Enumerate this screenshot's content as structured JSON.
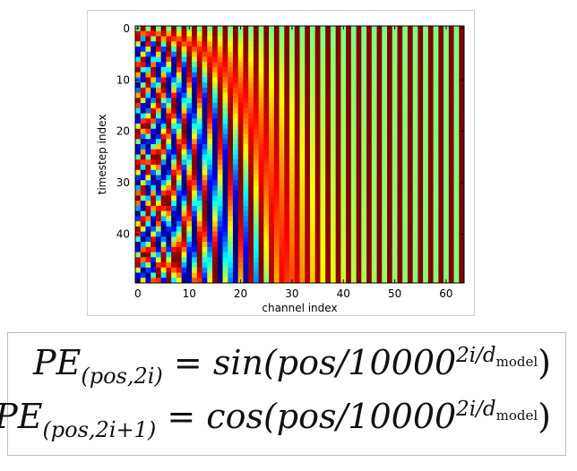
{
  "chart_data": {
    "type": "heatmap",
    "title": "",
    "xlabel": "channel index",
    "ylabel": "timestep index",
    "n_channels": 64,
    "n_timesteps": 50,
    "d_model": 64,
    "xlim": [
      0,
      64
    ],
    "ylim": [
      50,
      0
    ],
    "x_ticks": [
      "0",
      "10",
      "20",
      "30",
      "40",
      "50",
      "60"
    ],
    "y_ticks": [
      "0",
      "10",
      "20",
      "30",
      "40"
    ],
    "colormap": "jet",
    "value_range": [
      -1,
      1
    ],
    "grid": false
  },
  "formulas": [
    {
      "lhs_symbol": "PE",
      "lhs_subscript": "(pos,2i)",
      "equals": "=",
      "func": "sin",
      "arg": "(pos/10000",
      "exp_text": "2i/d",
      "exp_sub": "model",
      "close": ")"
    },
    {
      "lhs_symbol": "PE",
      "lhs_subscript": "(pos,2i+1)",
      "equals": "=",
      "func": "cos",
      "arg": "(pos/10000",
      "exp_text": "2i/d",
      "exp_sub": "model",
      "close": ")"
    }
  ]
}
